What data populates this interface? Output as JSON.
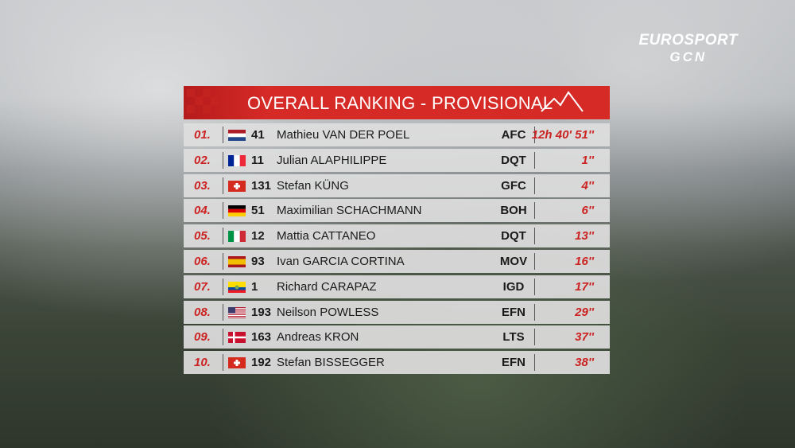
{
  "broadcaster": {
    "name": "EUROSPORT",
    "sub": "GCN"
  },
  "header": {
    "title": "OVERALL RANKING - PROVISIONAL"
  },
  "table": {
    "rows": [
      [
        "01.",
        "41",
        "Mathieu VAN DER POEL",
        "AFC",
        "12h 40' 51''"
      ],
      [
        "02.",
        "11",
        "Julian ALAPHILIPPE",
        "DQT",
        "1''"
      ],
      [
        "03.",
        "131",
        "Stefan KÜNG",
        "GFC",
        "4''"
      ],
      [
        "04.",
        "51",
        "Maximilian SCHACHMANN",
        "BOH",
        "6''"
      ],
      [
        "05.",
        "12",
        "Mattia CATTANEO",
        "DQT",
        "13''"
      ],
      [
        "06.",
        "93",
        "Ivan GARCIA CORTINA",
        "MOV",
        "16''"
      ],
      [
        "07.",
        "1",
        "Richard CARAPAZ",
        "IGD",
        "17''"
      ],
      [
        "08.",
        "193",
        "Neilson POWLESS",
        "EFN",
        "29''"
      ],
      [
        "09.",
        "163",
        "Andreas KRON",
        "LTS",
        "37''"
      ],
      [
        "10.",
        "192",
        "Stefan BISSEGGER",
        "EFN",
        "38''"
      ]
    ]
  }
}
